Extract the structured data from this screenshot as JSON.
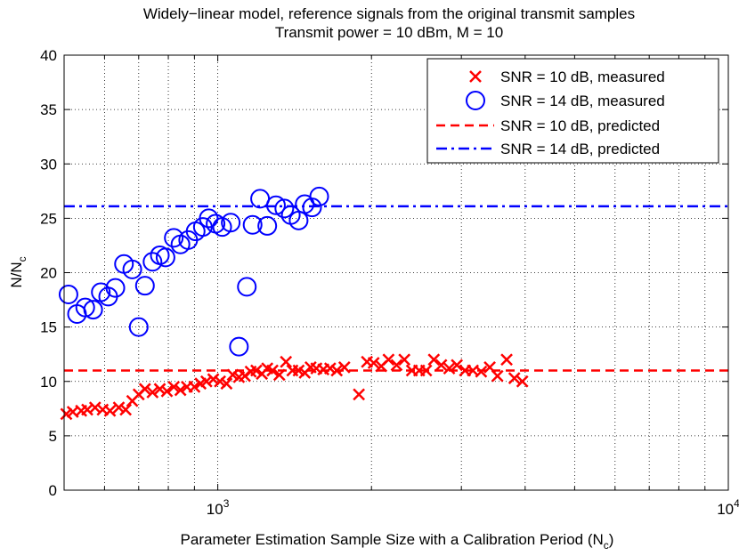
{
  "chart_data": {
    "type": "scatter",
    "title_lines": [
      "Widely−linear model, reference signals from the original transmit samples",
      "Transmit power = 10 dBm, M = 10"
    ],
    "xlabel": {
      "text": "Parameter Estimation Sample Size with a Calibration Period (N",
      "sub": "c",
      "suffix": ")"
    },
    "ylabel": {
      "text": "N/N",
      "sub": "c"
    },
    "x_scale": "log",
    "xlim": [
      500,
      10000
    ],
    "ylim": [
      0,
      40
    ],
    "grid": true,
    "yticks": [
      0,
      5,
      10,
      15,
      20,
      25,
      30,
      35,
      40
    ],
    "xticks": [
      {
        "value": 1000,
        "base": "10",
        "exp": "3"
      },
      {
        "value": 10000,
        "base": "10",
        "exp": "4"
      }
    ],
    "series": [
      {
        "name": "SNR = 10 dB, measured",
        "marker": "x",
        "color": "#ff0000",
        "points": [
          [
            505,
            7.0
          ],
          [
            520,
            7.2
          ],
          [
            540,
            7.3
          ],
          [
            555,
            7.4
          ],
          [
            575,
            7.6
          ],
          [
            595,
            7.4
          ],
          [
            615,
            7.3
          ],
          [
            640,
            7.6
          ],
          [
            660,
            7.4
          ],
          [
            680,
            8.2
          ],
          [
            700,
            8.8
          ],
          [
            720,
            9.3
          ],
          [
            745,
            9.0
          ],
          [
            770,
            9.3
          ],
          [
            795,
            9.1
          ],
          [
            820,
            9.5
          ],
          [
            845,
            9.2
          ],
          [
            870,
            9.5
          ],
          [
            900,
            9.5
          ],
          [
            925,
            9.8
          ],
          [
            950,
            10.0
          ],
          [
            980,
            10.2
          ],
          [
            1010,
            10.0
          ],
          [
            1040,
            9.8
          ],
          [
            1070,
            10.6
          ],
          [
            1100,
            10.4
          ],
          [
            1130,
            10.5
          ],
          [
            1160,
            10.9
          ],
          [
            1190,
            11.0
          ],
          [
            1220,
            10.7
          ],
          [
            1250,
            11.2
          ],
          [
            1280,
            11.0
          ],
          [
            1320,
            10.6
          ],
          [
            1360,
            11.8
          ],
          [
            1400,
            11.0
          ],
          [
            1440,
            11.0
          ],
          [
            1480,
            10.8
          ],
          [
            1520,
            11.3
          ],
          [
            1560,
            11.2
          ],
          [
            1610,
            11.1
          ],
          [
            1660,
            11.2
          ],
          [
            1710,
            11.0
          ],
          [
            1770,
            11.3
          ],
          [
            1890,
            8.8
          ],
          [
            1960,
            11.8
          ],
          [
            2020,
            11.7
          ],
          [
            2090,
            11.4
          ],
          [
            2160,
            12.0
          ],
          [
            2240,
            11.5
          ],
          [
            2320,
            12.0
          ],
          [
            2400,
            11.0
          ],
          [
            2480,
            11.0
          ],
          [
            2560,
            11.0
          ],
          [
            2650,
            12.0
          ],
          [
            2740,
            11.5
          ],
          [
            2840,
            11.2
          ],
          [
            2940,
            11.5
          ],
          [
            3050,
            11.0
          ],
          [
            3160,
            11.0
          ],
          [
            3280,
            10.9
          ],
          [
            3410,
            11.3
          ],
          [
            3530,
            10.5
          ],
          [
            3680,
            12.0
          ],
          [
            3810,
            10.3
          ],
          [
            3950,
            10.0
          ]
        ]
      },
      {
        "name": "SNR = 14 dB, measured",
        "marker": "o",
        "color": "#0000ff",
        "points": [
          [
            510,
            18.0
          ],
          [
            530,
            16.2
          ],
          [
            550,
            16.8
          ],
          [
            570,
            16.6
          ],
          [
            590,
            18.2
          ],
          [
            610,
            17.8
          ],
          [
            630,
            18.6
          ],
          [
            655,
            20.8
          ],
          [
            680,
            20.3
          ],
          [
            700,
            15.0
          ],
          [
            720,
            18.8
          ],
          [
            745,
            21.0
          ],
          [
            770,
            21.6
          ],
          [
            790,
            21.4
          ],
          [
            820,
            23.2
          ],
          [
            845,
            22.6
          ],
          [
            875,
            23.0
          ],
          [
            905,
            23.8
          ],
          [
            935,
            24.2
          ],
          [
            960,
            25.0
          ],
          [
            990,
            24.5
          ],
          [
            1020,
            24.2
          ],
          [
            1060,
            24.6
          ],
          [
            1100,
            13.2
          ],
          [
            1140,
            18.7
          ],
          [
            1170,
            24.4
          ],
          [
            1210,
            26.8
          ],
          [
            1250,
            24.3
          ],
          [
            1300,
            26.2
          ],
          [
            1350,
            25.9
          ],
          [
            1390,
            25.3
          ],
          [
            1440,
            24.8
          ],
          [
            1480,
            26.3
          ],
          [
            1530,
            26.0
          ],
          [
            1580,
            27.0
          ]
        ]
      },
      {
        "name": "SNR = 10 dB, predicted",
        "line": "dashed",
        "color": "#ff0000",
        "y": 11.0
      },
      {
        "name": "SNR = 14 dB, predicted",
        "line": "dashdot",
        "color": "#0000ff",
        "y": 26.1
      }
    ],
    "legend": {
      "position": "top-right"
    }
  }
}
